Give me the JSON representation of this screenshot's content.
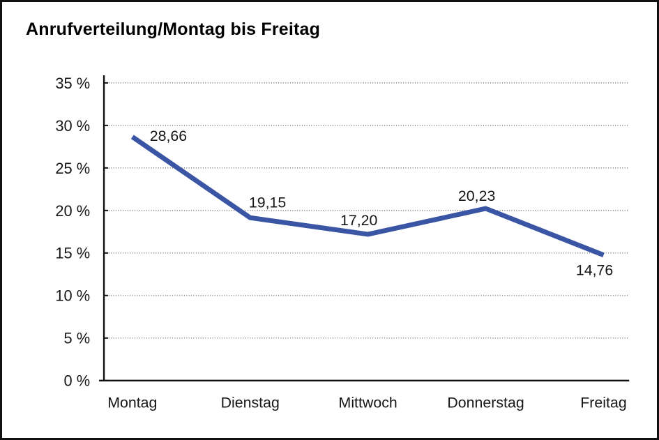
{
  "chart_data": {
    "type": "line",
    "title": "Anrufverteilung/Montag bis Freitag",
    "categories": [
      "Montag",
      "Dienstag",
      "Mittwoch",
      "Donnerstag",
      "Freitag"
    ],
    "values": [
      28.66,
      19.15,
      17.2,
      20.23,
      14.76
    ],
    "data_labels": [
      "28,66",
      "19,15",
      "17,20",
      "20,23",
      "14,76"
    ],
    "y_tick_values": [
      35,
      30,
      25,
      20,
      15,
      10,
      5,
      0
    ],
    "y_tick_labels": [
      "35 %",
      "30 %",
      "25 %",
      "20 %",
      "15 %",
      "10 %",
      "5 %",
      "0 %"
    ],
    "ylim": [
      0,
      35
    ],
    "xlabel": "",
    "ylabel": "",
    "grid": "horizontal-dotted",
    "legend_position": "none",
    "line_color": "#3A55A4",
    "axis_color": "#111111",
    "frame_border_color": "#111111",
    "background_color": "#FFFFFF"
  }
}
